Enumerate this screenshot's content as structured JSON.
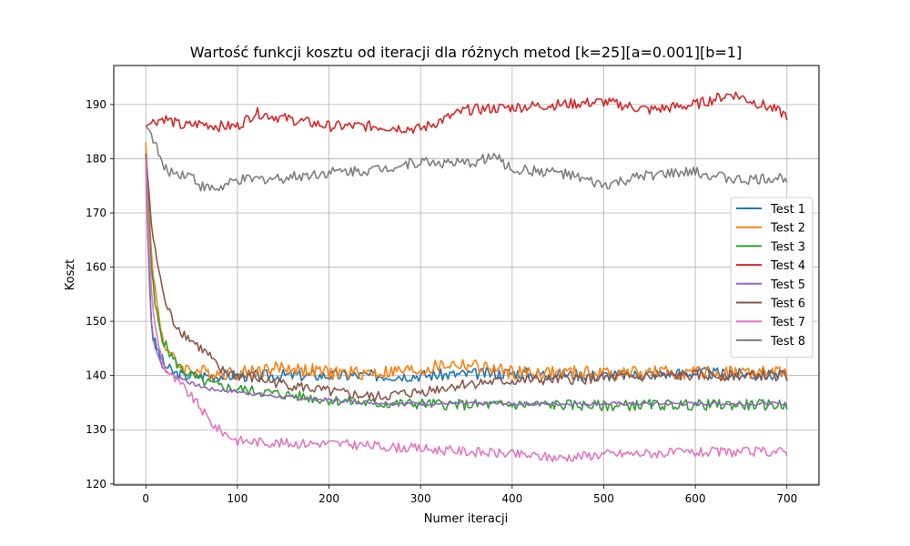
{
  "chart_data": {
    "type": "line",
    "title": "Wartość funkcji kosztu od iteracji dla różnych metod [k=25][a=0.001][b=1]",
    "xlabel": "Numer iteracji",
    "ylabel": "Koszt",
    "xlim": [
      -35,
      735
    ],
    "ylim": [
      119.8,
      197.2
    ],
    "xticks": [
      0,
      100,
      200,
      300,
      400,
      500,
      600,
      700
    ],
    "yticks": [
      120,
      130,
      140,
      150,
      160,
      170,
      180,
      190
    ],
    "grid": true,
    "legend_position": "right",
    "series": [
      {
        "name": "Test 1",
        "color": "#1f77b4",
        "x": [
          0,
          2,
          4,
          6,
          8,
          10,
          15,
          20,
          30,
          40,
          50,
          70,
          100,
          150,
          200,
          300,
          400,
          500,
          600,
          700
        ],
        "y": [
          180,
          168,
          158,
          150,
          147,
          146,
          144,
          142,
          140.5,
          140,
          140,
          140,
          140,
          140,
          140,
          140,
          140.5,
          140,
          140.5,
          140
        ]
      },
      {
        "name": "Test 2",
        "color": "#ff7f0e",
        "x": [
          0,
          3,
          6,
          10,
          15,
          20,
          30,
          40,
          50,
          70,
          100,
          150,
          200,
          250,
          300,
          330,
          350,
          400,
          500,
          600,
          700
        ],
        "y": [
          183,
          172,
          163,
          156,
          150,
          146,
          143,
          141.5,
          141,
          140.5,
          140.5,
          141.5,
          140.5,
          140.5,
          141,
          142,
          142,
          140.5,
          140.5,
          140.5,
          140.5
        ]
      },
      {
        "name": "Test 3",
        "color": "#2ca02c",
        "x": [
          0,
          3,
          6,
          10,
          15,
          20,
          30,
          40,
          60,
          80,
          100,
          150,
          200,
          250,
          300,
          350,
          400,
          450,
          500,
          550,
          600,
          650,
          700
        ],
        "y": [
          181,
          170,
          160,
          153,
          149,
          146,
          143,
          141,
          139,
          138,
          137.5,
          136.5,
          135.5,
          134.8,
          134.8,
          134.6,
          134.6,
          134.6,
          134.4,
          134.6,
          134.6,
          134.6,
          134.6
        ]
      },
      {
        "name": "Test 4",
        "color": "#d62728",
        "x": [
          0,
          10,
          20,
          40,
          60,
          80,
          100,
          120,
          150,
          200,
          250,
          300,
          350,
          400,
          450,
          500,
          550,
          600,
          640,
          680,
          700
        ],
        "y": [
          186,
          187,
          187.5,
          186,
          186.5,
          186,
          186,
          188.5,
          187.5,
          186,
          186,
          185.5,
          189,
          189.5,
          190,
          190.5,
          189,
          190,
          192,
          189.5,
          188
        ]
      },
      {
        "name": "Test 5",
        "color": "#9467bd",
        "x": [
          0,
          2,
          4,
          6,
          8,
          10,
          15,
          20,
          30,
          40,
          50,
          70,
          100,
          150,
          200,
          250,
          300,
          400,
          500,
          600,
          700
        ],
        "y": [
          180,
          167,
          157,
          150,
          147,
          145.5,
          143,
          141,
          140,
          139.5,
          138.5,
          137.5,
          137,
          136,
          135.5,
          135,
          134.8,
          134.8,
          134.8,
          134.8,
          134.8
        ]
      },
      {
        "name": "Test 6",
        "color": "#8c564b",
        "x": [
          0,
          3,
          6,
          10,
          15,
          20,
          30,
          40,
          50,
          60,
          70,
          80,
          100,
          150,
          200,
          250,
          300,
          350,
          400,
          500,
          600,
          700
        ],
        "y": [
          181,
          175,
          168,
          163,
          159,
          154,
          150,
          148,
          146.5,
          145,
          143.5,
          141,
          140,
          138.5,
          137,
          136,
          137,
          138.5,
          139,
          139.5,
          140,
          140
        ]
      },
      {
        "name": "Test 7",
        "color": "#e377c2",
        "x": [
          0,
          3,
          6,
          10,
          15,
          20,
          30,
          40,
          50,
          60,
          70,
          80,
          100,
          150,
          200,
          300,
          400,
          450,
          500,
          600,
          700
        ],
        "y": [
          180,
          167,
          156,
          149,
          145,
          141.5,
          139.5,
          138,
          136,
          134,
          131.5,
          130,
          128,
          127.5,
          127.5,
          126.5,
          125.5,
          124.8,
          125.5,
          125.8,
          126
        ]
      },
      {
        "name": "Test 8",
        "color": "#7f7f7f",
        "x": [
          0,
          5,
          10,
          20,
          30,
          50,
          60,
          70,
          80,
          100,
          150,
          200,
          250,
          300,
          350,
          380,
          400,
          450,
          500,
          550,
          600,
          650,
          700
        ],
        "y": [
          186,
          185,
          183,
          178,
          177.5,
          177,
          175,
          174.5,
          174.5,
          176,
          176.5,
          177.5,
          178,
          179.5,
          179,
          180.5,
          178,
          177.5,
          175,
          177,
          177.5,
          176,
          176.5
        ]
      }
    ]
  }
}
